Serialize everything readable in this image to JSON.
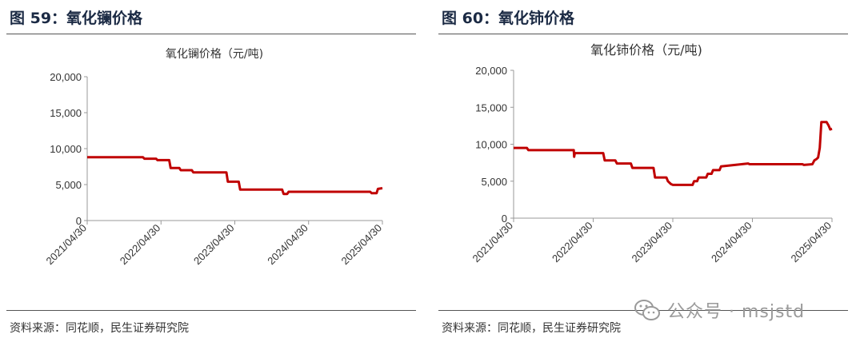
{
  "panels": [
    {
      "figure_title": "图 59：氧化镧价格",
      "source": "资料来源：同花顺，民生证券研究院",
      "chart_data": {
        "type": "line",
        "title": "氧化镧价格（元/吨)",
        "xlabel": "",
        "ylabel": "",
        "ylim": [
          0,
          20000
        ],
        "yticks": [
          "20,000",
          "15,000",
          "10,000",
          "5,000",
          "0"
        ],
        "xticks": [
          "2021/04/30",
          "2022/04/30",
          "2023/04/30",
          "2024/04/30",
          "2025/04/30"
        ],
        "xlim": [
          "2021-04-30",
          "2025-04-30"
        ],
        "grid": false,
        "color": "#c00000",
        "series": [
          {
            "x": [
              "2021-04-30",
              "2022-01-31",
              "2022-02-07",
              "2022-04-06",
              "2022-04-13",
              "2022-06-10",
              "2022-06-17",
              "2022-07-30",
              "2022-08-06",
              "2022-09-30",
              "2022-10-07",
              "2023-03-20",
              "2023-03-27",
              "2023-05-20",
              "2023-05-27",
              "2023-12-21",
              "2023-12-28",
              "2024-01-15",
              "2024-01-22",
              "2025-03-01",
              "2025-03-08",
              "2025-04-01",
              "2025-04-08",
              "2025-04-30"
            ],
            "values": [
              8800,
              8800,
              8600,
              8600,
              8400,
              8400,
              7300,
              7300,
              7000,
              7000,
              6700,
              6700,
              5400,
              5400,
              4300,
              4300,
              3700,
              3700,
              4000,
              4000,
              3800,
              3800,
              4400,
              4500
            ]
          }
        ]
      }
    },
    {
      "figure_title": "图 60：氧化铈价格",
      "source": "资料来源：同花顺，民生证券研究院",
      "chart_data": {
        "type": "line",
        "title": "氧化铈价格（元/吨)",
        "xlabel": "",
        "ylabel": "",
        "ylim": [
          0,
          20000
        ],
        "yticks": [
          "20,000",
          "15,000",
          "10,000",
          "5,000",
          "0"
        ],
        "xticks": [
          "2021/04/30",
          "2022/04/30",
          "2023/04/30",
          "2024/04/30",
          "2025/04/30"
        ],
        "xlim": [
          "2021-04-30",
          "2025-04-30"
        ],
        "grid": false,
        "color": "#c00000",
        "series": [
          {
            "x": [
              "2021-04-30",
              "2021-06-30",
              "2021-07-07",
              "2022-01-31",
              "2022-02-02",
              "2022-02-05",
              "2022-02-09",
              "2022-06-15",
              "2022-06-22",
              "2022-08-10",
              "2022-08-17",
              "2022-10-20",
              "2022-10-27",
              "2023-02-01",
              "2023-02-08",
              "2023-04-01",
              "2023-04-08",
              "2023-04-22",
              "2023-05-01",
              "2023-07-30",
              "2023-08-06",
              "2023-08-20",
              "2023-08-27",
              "2023-10-01",
              "2023-10-08",
              "2023-10-25",
              "2023-11-01",
              "2023-12-01",
              "2023-12-08",
              "2024-04-10",
              "2024-04-17",
              "2024-12-15",
              "2024-12-22",
              "2025-01-30",
              "2025-02-08",
              "2025-02-18",
              "2025-02-25",
              "2025-03-05",
              "2025-03-12",
              "2025-04-05",
              "2025-04-15",
              "2025-04-22",
              "2025-04-30"
            ],
            "values": [
              9500,
              9500,
              9200,
              9200,
              8300,
              8800,
              8800,
              8800,
              7800,
              7800,
              7400,
              7400,
              6800,
              6800,
              5500,
              5500,
              5000,
              4600,
              4500,
              4500,
              5000,
              5000,
              5500,
              5500,
              6000,
              6000,
              6500,
              6500,
              7000,
              7400,
              7300,
              7300,
              7200,
              7300,
              7800,
              8000,
              8200,
              9500,
              13000,
              13000,
              12500,
              12000,
              12100
            ]
          }
        ]
      }
    }
  ],
  "watermark": {
    "text": "公众号 · msjstd"
  }
}
